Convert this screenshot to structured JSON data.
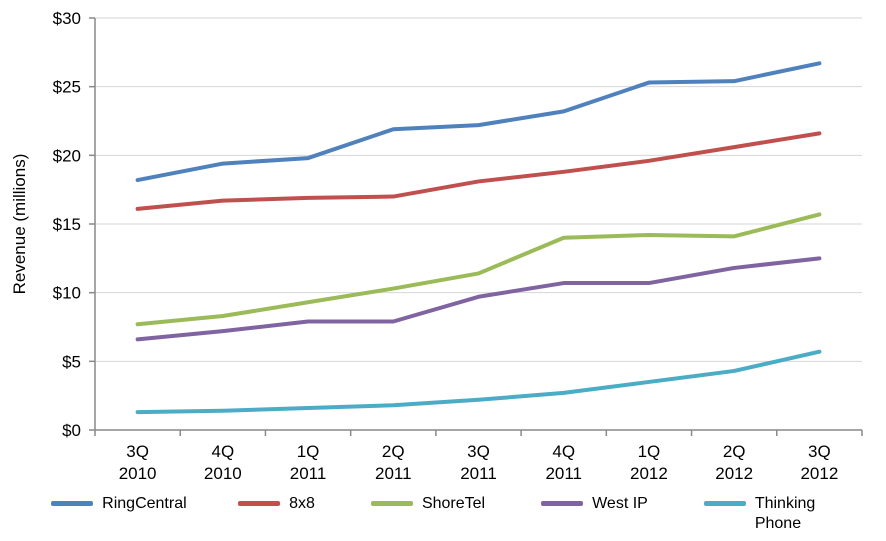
{
  "chart_data": {
    "type": "line",
    "title": "",
    "xlabel": "",
    "ylabel": "Revenue (millions)",
    "ylim": [
      0,
      30
    ],
    "ytick_step": 5,
    "ytick_labels": [
      "$0",
      "$5",
      "$10",
      "$15",
      "$20",
      "$25",
      "$30"
    ],
    "grid": true,
    "legend_position": "bottom",
    "categories": [
      [
        "3Q",
        "2010"
      ],
      [
        "4Q",
        "2010"
      ],
      [
        "1Q",
        "2011"
      ],
      [
        "2Q",
        "2011"
      ],
      [
        "3Q",
        "2011"
      ],
      [
        "4Q",
        "2011"
      ],
      [
        "1Q",
        "2012"
      ],
      [
        "2Q",
        "2012"
      ],
      [
        "3Q",
        "2012"
      ]
    ],
    "series": [
      {
        "name": "RingCentral",
        "color": "#4F81BD",
        "values": [
          18.2,
          19.4,
          19.8,
          21.9,
          22.2,
          23.2,
          25.3,
          25.4,
          26.7
        ]
      },
      {
        "name": "8x8",
        "color": "#C0504D",
        "values": [
          16.1,
          16.7,
          16.9,
          17.0,
          18.1,
          18.8,
          19.6,
          20.6,
          21.6
        ]
      },
      {
        "name": "ShoreTel",
        "color": "#9BBB59",
        "values": [
          7.7,
          8.3,
          9.3,
          10.3,
          11.4,
          14.0,
          14.2,
          14.1,
          15.7
        ]
      },
      {
        "name": "West IP",
        "color": "#8064A2",
        "values": [
          6.6,
          7.2,
          7.9,
          7.9,
          9.7,
          10.7,
          10.7,
          11.8,
          12.5
        ]
      },
      {
        "name": "Thinking Phone",
        "color": "#4BACC6",
        "values": [
          1.3,
          1.4,
          1.6,
          1.8,
          2.2,
          2.7,
          3.5,
          4.3,
          5.7
        ]
      }
    ],
    "style": {
      "gridline_color": "#D6D6D6",
      "axis_color": "#898989",
      "text_color": "#000000"
    }
  }
}
